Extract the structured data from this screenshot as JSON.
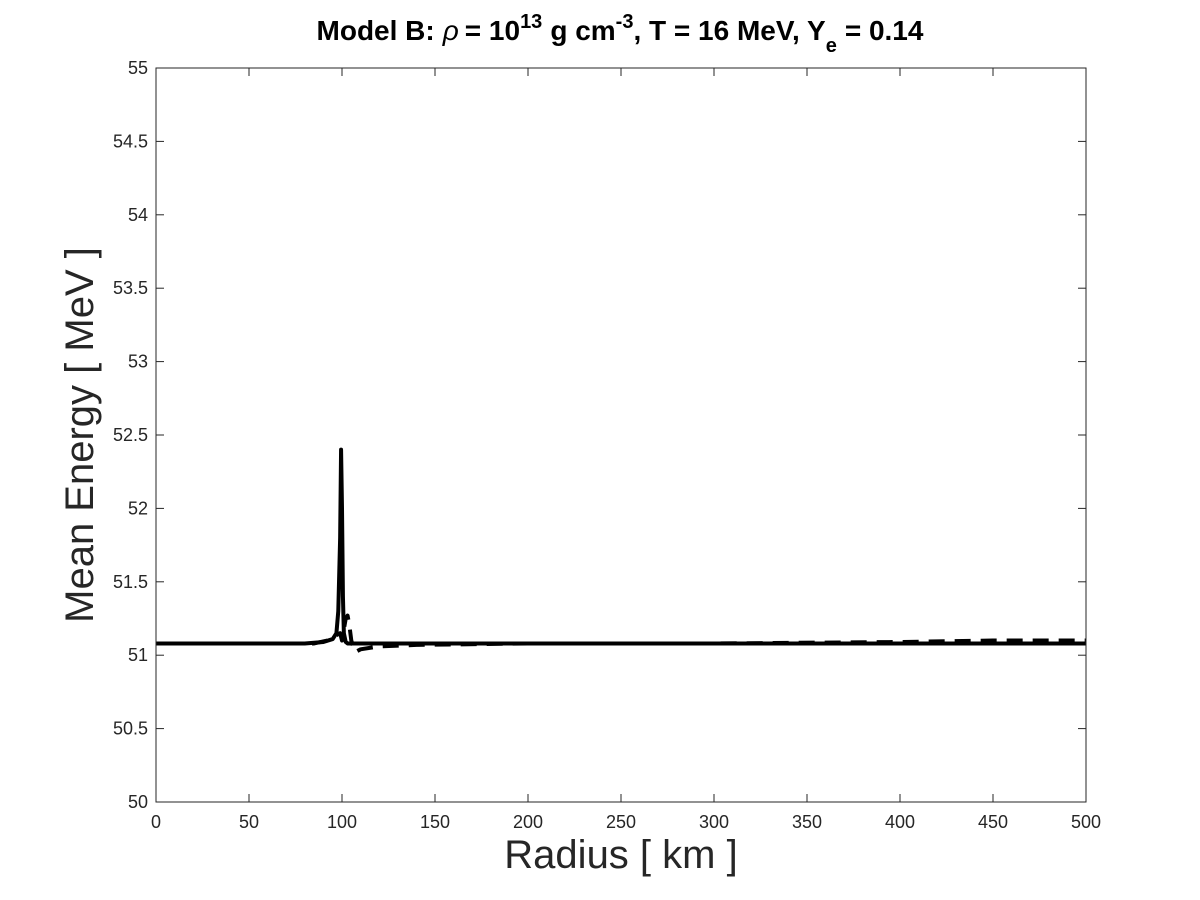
{
  "chart_data": {
    "type": "line",
    "title": {
      "model": "Model B:",
      "rho_symbol": "ρ",
      "eq1": "= 10",
      "rho_exp": "13",
      "rho_units": "g cm",
      "rho_units_exp": "-3",
      "rest": ", T = 16 MeV, Y",
      "ye_sub": "e",
      "ye_val": "= 0.14"
    },
    "xlabel": "Radius [ km ]",
    "ylabel": "Mean Energy [ MeV ]",
    "xlim": [
      0,
      500
    ],
    "ylim": [
      50,
      55
    ],
    "xticks": [
      0,
      50,
      100,
      150,
      200,
      250,
      300,
      350,
      400,
      450,
      500
    ],
    "yticks": [
      50,
      50.5,
      51,
      51.5,
      52,
      52.5,
      53,
      53.5,
      54,
      54.5,
      55
    ],
    "grid": false,
    "colors": {
      "line": "#000000",
      "axis": "#262626"
    },
    "series": [
      {
        "style": "solid",
        "x": [
          0,
          80,
          90,
          95,
          97,
          98,
          99,
          99.5,
          100,
          100.5,
          101,
          102,
          103,
          110,
          200,
          300,
          400,
          500
        ],
        "y": [
          51.08,
          51.08,
          51.09,
          51.11,
          51.15,
          51.3,
          51.8,
          52.4,
          52.0,
          51.4,
          51.15,
          51.09,
          51.08,
          51.08,
          51.08,
          51.08,
          51.08,
          51.08
        ]
      },
      {
        "style": "dashed",
        "x": [
          0,
          85,
          92,
          96,
          99,
          100,
          102,
          103,
          104,
          105,
          107,
          110,
          120,
          140,
          200,
          300,
          400,
          450,
          500
        ],
        "y": [
          51.08,
          51.08,
          51.1,
          51.13,
          51.15,
          51.1,
          51.25,
          51.27,
          51.2,
          51.1,
          51.02,
          51.04,
          51.06,
          51.07,
          51.08,
          51.08,
          51.09,
          51.1,
          51.1
        ]
      }
    ]
  }
}
